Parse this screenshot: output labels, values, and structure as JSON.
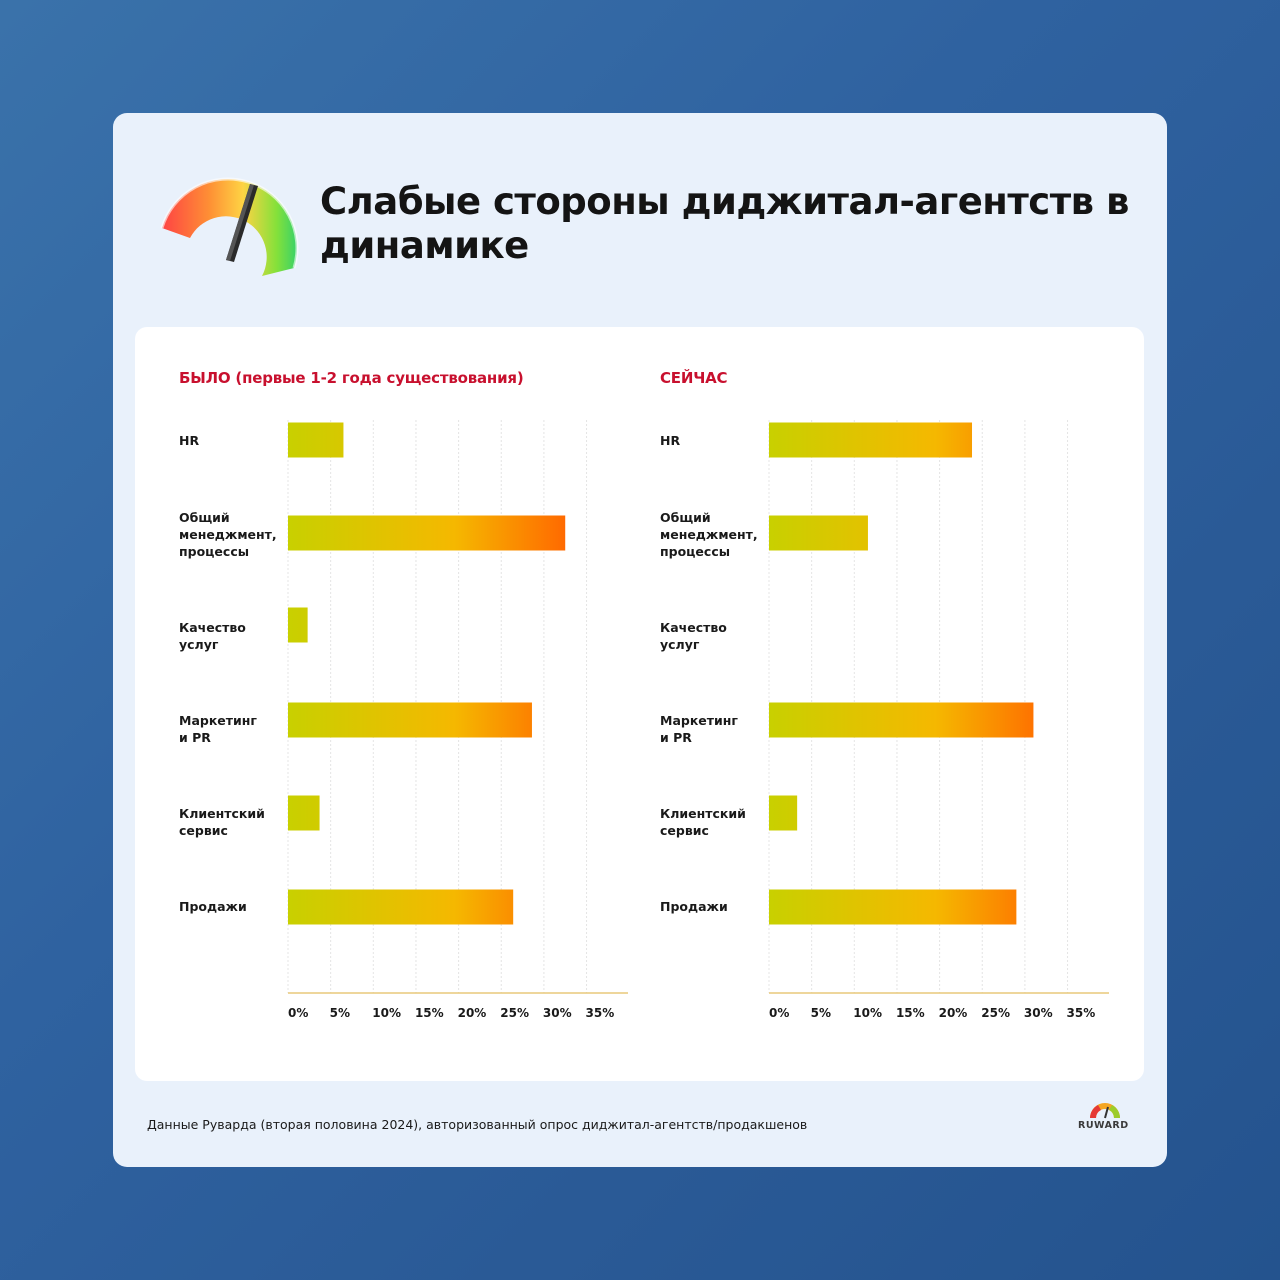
{
  "title": "Слабые стороны диджитал-агентств в динамике",
  "footer": "Данные Руварда (вторая половина 2024), авторизованный опрос диджитал-агентств/продакшенов",
  "logo_text": "RUWARD",
  "icons": {
    "gauge": "gauge-icon",
    "logo": "ruward-logo-icon"
  },
  "colors": {
    "bar_start": "#c8d000",
    "bar_mid": "#f5b800",
    "bar_end": "#ff6a00",
    "chart_title": "#c8102e",
    "axis": "#e8c87a"
  },
  "chart_data": [
    {
      "type": "bar",
      "orientation": "horizontal",
      "title": "БЫЛО (первые 1-2 года существования)",
      "categories": [
        "HR",
        "Общий менеджмент, процессы",
        "Качество услуг",
        "Маркетинг и PR",
        "Клиентский сервис",
        "Продажи"
      ],
      "category_lines": [
        [
          "HR"
        ],
        [
          "Общий",
          "менеджмент,",
          "процессы"
        ],
        [
          "Качество",
          "услуг"
        ],
        [
          "Маркетинг",
          "и PR"
        ],
        [
          "Клиентский",
          "сервис"
        ],
        [
          "Продажи"
        ]
      ],
      "values": [
        6.5,
        32.5,
        2.3,
        28.6,
        3.7,
        26.4
      ],
      "xlim": [
        0,
        40
      ],
      "ticks": [
        "0%",
        "5%",
        "10%",
        "15%",
        "20%",
        "25%",
        "30%",
        "35%"
      ],
      "grid": true
    },
    {
      "type": "bar",
      "orientation": "horizontal",
      "title": "СЕЙЧАС",
      "categories": [
        "HR",
        "Общий менеджмент, процессы",
        "Качество услуг",
        "Маркетинг и PR",
        "Клиентский сервис",
        "Продажи"
      ],
      "category_lines": [
        [
          "HR"
        ],
        [
          "Общий",
          "менеджмент,",
          "процессы"
        ],
        [
          "Качество",
          "услуг"
        ],
        [
          "Маркетинг",
          "и PR"
        ],
        [
          "Клиентский",
          "сервис"
        ],
        [
          "Продажи"
        ]
      ],
      "values": [
        23.8,
        11.6,
        0,
        31.0,
        3.3,
        29.0
      ],
      "xlim": [
        0,
        40
      ],
      "ticks": [
        "0%",
        "5%",
        "10%",
        "15%",
        "20%",
        "25%",
        "30%",
        "35%"
      ],
      "grid": true
    }
  ]
}
